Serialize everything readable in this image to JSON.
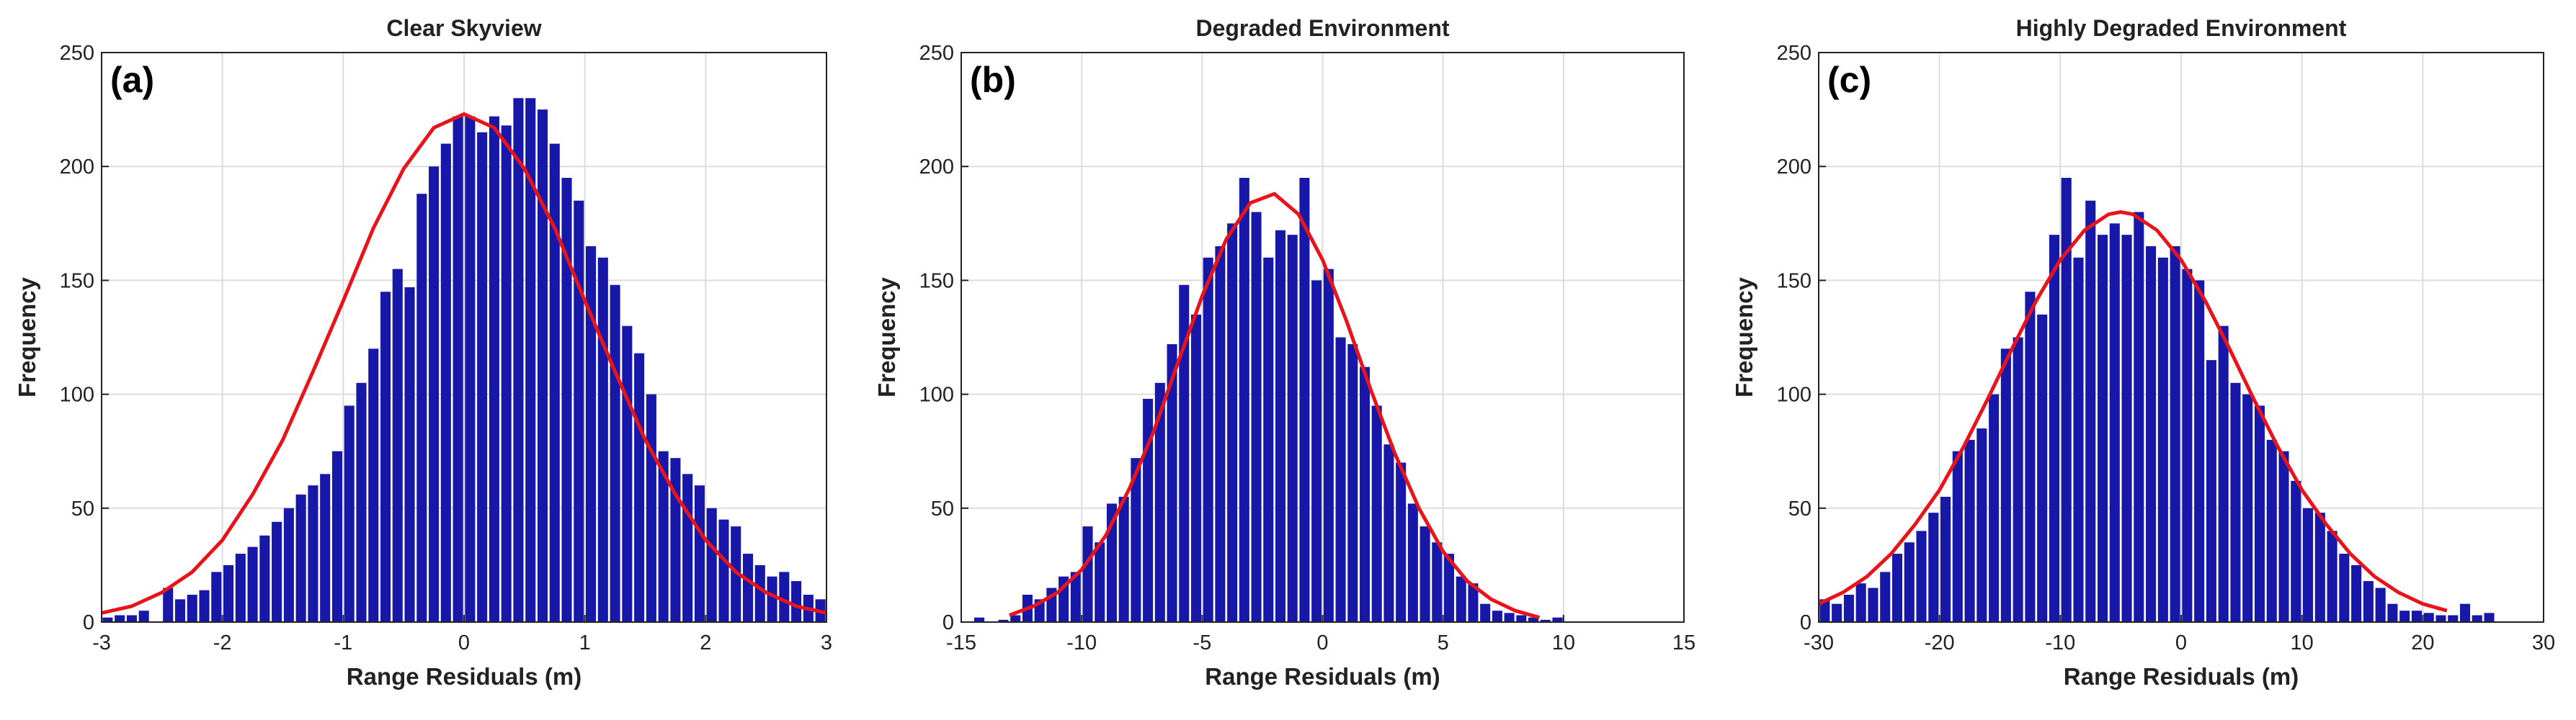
{
  "chart_data": [
    {
      "type": "histogram",
      "title": "Clear Skyview",
      "annotation": "(a)",
      "xlabel": "Range Residuals (m)",
      "ylabel": "Frequency",
      "bins": [
        -3,
        -2.9,
        -2.8,
        -2.7,
        -2.6,
        -2.5,
        -2.4,
        -2.3,
        -2.2,
        -2.1,
        -2,
        -1.9,
        -1.8,
        -1.7,
        -1.6,
        -1.5,
        -1.4,
        -1.3,
        -1.2,
        -1.1,
        -1,
        -0.9,
        -0.8,
        -0.7,
        -0.6,
        -0.5,
        -0.4,
        -0.3,
        -0.2,
        -0.1,
        0,
        0.1,
        0.2,
        0.3,
        0.4,
        0.5,
        0.6,
        0.7,
        0.8,
        0.9,
        1,
        1.1,
        1.2,
        1.3,
        1.4,
        1.5,
        1.6,
        1.7,
        1.8,
        1.9,
        2,
        2.1,
        2.2,
        2.3,
        2.4,
        2.5,
        2.6,
        2.7,
        2.8,
        2.9,
        3
      ],
      "counts": [
        2,
        3,
        3,
        5,
        0,
        15,
        10,
        12,
        14,
        22,
        25,
        30,
        33,
        38,
        44,
        50,
        56,
        60,
        65,
        75,
        95,
        105,
        120,
        145,
        155,
        147,
        188,
        200,
        210,
        222,
        222,
        215,
        222,
        218,
        230,
        230,
        225,
        210,
        195,
        185,
        165,
        160,
        148,
        130,
        118,
        100,
        75,
        72,
        65,
        60,
        50,
        45,
        42,
        30,
        25,
        20,
        22,
        18,
        12,
        10
      ],
      "color": "#1717a8",
      "curve": {
        "color": "#e8141c",
        "x": [
          -3,
          -2.75,
          -2.5,
          -2.25,
          -2,
          -1.75,
          -1.5,
          -1.25,
          -1,
          -0.75,
          -0.5,
          -0.25,
          0,
          0.25,
          0.5,
          0.75,
          1,
          1.25,
          1.5,
          1.75,
          2,
          2.25,
          2.5,
          2.75,
          3
        ],
        "values": [
          4,
          7,
          13,
          22,
          36,
          56,
          80,
          110,
          141,
          173,
          199,
          217,
          223,
          217,
          199,
          173,
          141,
          110,
          80,
          56,
          36,
          22,
          13,
          7,
          4
        ]
      },
      "xlim": [
        -3,
        3
      ],
      "ylim": [
        0,
        250
      ],
      "xticks": [
        -3,
        -2,
        -1,
        0,
        1,
        2,
        3
      ],
      "yticks": [
        0,
        50,
        100,
        150,
        200,
        250
      ],
      "grid": true
    },
    {
      "type": "histogram",
      "title": "Degraded Environment",
      "annotation": "(b)",
      "xlabel": "Range Residuals (m)",
      "ylabel": "Frequency",
      "bins": [
        -14.5,
        -14,
        -13.5,
        -13,
        -12.5,
        -12,
        -11.5,
        -11,
        -10.5,
        -10,
        -9.5,
        -9,
        -8.5,
        -8,
        -7.5,
        -7,
        -6.5,
        -6,
        -5.5,
        -5,
        -4.5,
        -4,
        -3.5,
        -3,
        -2.5,
        -2,
        -1.5,
        -1,
        -0.5,
        0,
        0.5,
        1,
        1.5,
        2,
        2.5,
        3,
        3.5,
        4,
        4.5,
        5,
        5.5,
        6,
        6.5,
        7,
        7.5,
        8,
        8.5,
        9,
        9.5,
        10
      ],
      "counts": [
        2,
        0,
        1,
        3,
        12,
        10,
        15,
        20,
        22,
        42,
        35,
        52,
        55,
        72,
        98,
        105,
        122,
        148,
        135,
        160,
        165,
        175,
        195,
        180,
        160,
        172,
        170,
        195,
        150,
        155,
        125,
        122,
        112,
        95,
        78,
        70,
        52,
        42,
        35,
        30,
        20,
        17,
        8,
        5,
        4,
        3,
        2,
        1,
        2
      ],
      "color": "#1717a8",
      "curve": {
        "color": "#e8141c",
        "x": [
          -13,
          -12,
          -11,
          -10,
          -9,
          -8,
          -7,
          -6,
          -5,
          -4,
          -3,
          -2,
          -1,
          0,
          1,
          2,
          3,
          4,
          5,
          6,
          7,
          8,
          9
        ],
        "values": [
          3,
          7,
          13,
          23,
          38,
          59,
          84,
          114,
          143,
          168,
          184,
          188,
          179,
          159,
          132,
          102,
          74,
          50,
          31,
          18,
          10,
          5,
          2
        ]
      },
      "xlim": [
        -15,
        15
      ],
      "ylim": [
        0,
        250
      ],
      "xticks": [
        -15,
        -10,
        -5,
        0,
        5,
        10,
        15
      ],
      "yticks": [
        0,
        50,
        100,
        150,
        200,
        250
      ],
      "grid": true
    },
    {
      "type": "histogram",
      "title": "Highly Degraded Environment",
      "annotation": "(c)",
      "xlabel": "Range Residuals (m)",
      "ylabel": "Frequency",
      "bins": [
        -30,
        -29,
        -28,
        -27,
        -26,
        -25,
        -24,
        -23,
        -22,
        -21,
        -20,
        -19,
        -18,
        -17,
        -16,
        -15,
        -14,
        -13,
        -12,
        -11,
        -10,
        -9,
        -8,
        -7,
        -6,
        -5,
        -4,
        -3,
        -2,
        -1,
        0,
        1,
        2,
        3,
        4,
        5,
        6,
        7,
        8,
        9,
        10,
        11,
        12,
        13,
        14,
        15,
        16,
        17,
        18,
        19,
        20,
        21,
        22,
        23,
        24,
        25,
        26
      ],
      "counts": [
        10,
        8,
        12,
        17,
        15,
        22,
        30,
        35,
        40,
        48,
        55,
        75,
        80,
        85,
        100,
        120,
        125,
        145,
        135,
        170,
        195,
        160,
        185,
        170,
        175,
        170,
        180,
        165,
        160,
        165,
        155,
        150,
        115,
        130,
        105,
        100,
        95,
        80,
        75,
        62,
        50,
        48,
        40,
        30,
        25,
        18,
        15,
        8,
        5,
        5,
        4,
        3,
        3,
        8,
        3,
        4
      ],
      "color": "#1717a8",
      "curve": {
        "color": "#e8141c",
        "x": [
          -30,
          -28,
          -26,
          -24,
          -22,
          -20,
          -18,
          -16,
          -14,
          -12,
          -10,
          -8,
          -6,
          -5,
          -4,
          -2,
          0,
          2,
          4,
          6,
          8,
          10,
          12,
          14,
          16,
          18,
          20,
          22
        ],
        "values": [
          8,
          13,
          20,
          30,
          43,
          58,
          77,
          98,
          120,
          141,
          159,
          172,
          179,
          180,
          179,
          172,
          159,
          141,
          120,
          98,
          77,
          58,
          43,
          30,
          20,
          13,
          8,
          5
        ]
      },
      "xlim": [
        -30,
        30
      ],
      "ylim": [
        0,
        250
      ],
      "xticks": [
        -30,
        -20,
        -10,
        0,
        10,
        20,
        30
      ],
      "yticks": [
        0,
        50,
        100,
        150,
        200,
        250
      ],
      "grid": true
    }
  ]
}
